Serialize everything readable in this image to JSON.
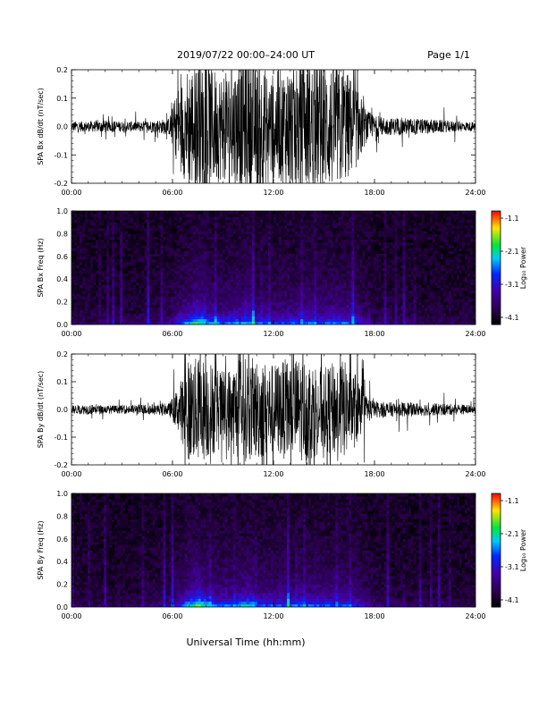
{
  "header": {
    "title": "2019/07/22   00:00–24:00 UT",
    "page": "Page 1/1"
  },
  "xlabel": "Universal Time (hh:mm)",
  "chart_data": [
    {
      "type": "line",
      "ylabel": "SPA Bx dB/dt (nT/sec)",
      "xlim": [
        0,
        24
      ],
      "ylim": [
        -0.2,
        0.2
      ],
      "xticks": [
        "00:00",
        "06:00",
        "12:00",
        "18:00",
        "24:00"
      ],
      "yticks": [
        "-0.2",
        "-0.1",
        "0.0",
        "0.1",
        "0.2"
      ],
      "envelope": {
        "x_hours": [
          0,
          1,
          2,
          3,
          4,
          5,
          5.8,
          6.3,
          7,
          8,
          9,
          10,
          11,
          12,
          13,
          14,
          15,
          16,
          16.9,
          17.5,
          18,
          19,
          20,
          21,
          22,
          23,
          24
        ],
        "amplitude": [
          0.025,
          0.025,
          0.03,
          0.025,
          0.025,
          0.03,
          0.04,
          0.18,
          0.3,
          0.3,
          0.25,
          0.3,
          0.3,
          0.25,
          0.3,
          0.3,
          0.3,
          0.3,
          0.2,
          0.08,
          0.05,
          0.04,
          0.04,
          0.035,
          0.03,
          0.025,
          0.02
        ]
      },
      "color": "#000000"
    },
    {
      "type": "heatmap",
      "ylabel": "SPA Bx Freq (Hz)",
      "xlim": [
        0,
        24
      ],
      "ylim": [
        0,
        1.0
      ],
      "xticks": [
        "00:00",
        "06:00",
        "12:00",
        "18:00",
        "24:00"
      ],
      "yticks": [
        "0.0",
        "0.2",
        "0.4",
        "0.6",
        "0.8",
        "1.0"
      ],
      "colorbar": {
        "label": "Log₁₀ Power",
        "ticks": [
          "-1.1",
          "-2.1",
          "-3.1",
          "-4.1"
        ],
        "range": [
          -4.1,
          -1.1
        ]
      },
      "activity_hours": [
        0,
        1,
        2,
        3,
        4,
        5,
        5.8,
        6.3,
        7,
        7.5,
        8,
        9,
        10,
        10.5,
        11,
        12,
        13,
        14,
        15,
        16,
        16.9,
        17.5,
        18,
        19,
        20,
        21,
        22,
        23,
        24
      ],
      "activity_level": [
        0.15,
        0.12,
        0.15,
        0.12,
        0.15,
        0.2,
        0.25,
        0.45,
        0.7,
        0.9,
        0.65,
        0.55,
        0.6,
        0.7,
        0.55,
        0.5,
        0.55,
        0.6,
        0.55,
        0.6,
        0.5,
        0.3,
        0.2,
        0.15,
        0.15,
        0.12,
        0.12,
        0.12,
        0.1
      ]
    },
    {
      "type": "line",
      "ylabel": "SPA By dB/dt (nT/sec)",
      "xlim": [
        0,
        24
      ],
      "ylim": [
        -0.2,
        0.2
      ],
      "xticks": [
        "00:00",
        "06:00",
        "12:00",
        "18:00",
        "24:00"
      ],
      "yticks": [
        "-0.2",
        "-0.1",
        "0.0",
        "0.1",
        "0.2"
      ],
      "envelope": {
        "x_hours": [
          0,
          1,
          2,
          3,
          4,
          5,
          5.8,
          6.3,
          7,
          8,
          9,
          10,
          11,
          12,
          13,
          14,
          15,
          16,
          16.9,
          17.5,
          18,
          19,
          20,
          21,
          22,
          23,
          24
        ],
        "amplitude": [
          0.02,
          0.025,
          0.02,
          0.02,
          0.025,
          0.025,
          0.03,
          0.1,
          0.25,
          0.25,
          0.18,
          0.25,
          0.25,
          0.22,
          0.25,
          0.25,
          0.2,
          0.25,
          0.18,
          0.07,
          0.04,
          0.035,
          0.035,
          0.03,
          0.03,
          0.025,
          0.02
        ]
      },
      "color": "#000000"
    },
    {
      "type": "heatmap",
      "ylabel": "SPA By Freq (Hz)",
      "xlim": [
        0,
        24
      ],
      "ylim": [
        0,
        1.0
      ],
      "xticks": [
        "00:00",
        "06:00",
        "12:00",
        "18:00",
        "24:00"
      ],
      "yticks": [
        "0.0",
        "0.2",
        "0.4",
        "0.6",
        "0.8",
        "1.0"
      ],
      "colorbar": {
        "label": "Log₁₀ Power",
        "ticks": [
          "-1.1",
          "-2.1",
          "-3.1",
          "-4.1"
        ],
        "range": [
          -4.1,
          -1.1
        ]
      },
      "activity_hours": [
        0,
        1,
        2,
        3,
        4,
        5,
        5.8,
        6.3,
        7,
        7.5,
        8,
        9,
        10,
        10.5,
        11,
        12,
        13,
        14,
        15,
        16,
        16.9,
        17.5,
        18,
        19,
        20,
        21,
        22,
        23,
        24
      ],
      "activity_level": [
        0.15,
        0.12,
        0.12,
        0.12,
        0.15,
        0.2,
        0.25,
        0.4,
        0.75,
        0.95,
        0.7,
        0.55,
        0.65,
        0.75,
        0.55,
        0.5,
        0.55,
        0.6,
        0.55,
        0.55,
        0.5,
        0.3,
        0.22,
        0.15,
        0.15,
        0.12,
        0.12,
        0.12,
        0.1
      ]
    }
  ]
}
